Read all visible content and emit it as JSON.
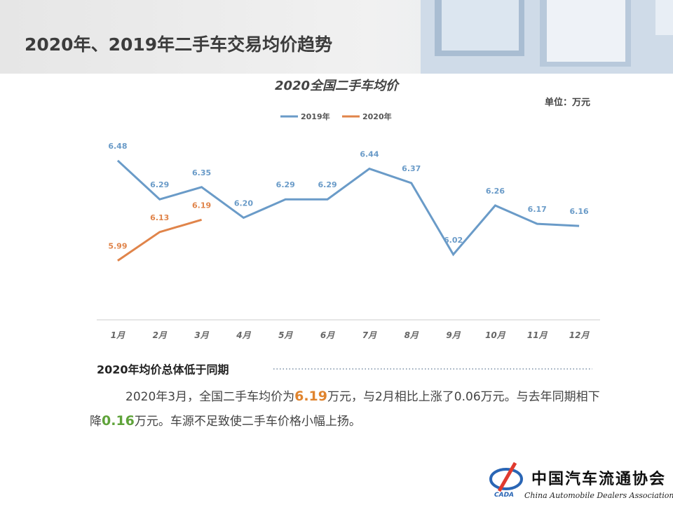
{
  "header": {
    "title": "2020年、2019年二手车交易均价趋势"
  },
  "chart_data": {
    "type": "line",
    "title": "2020全国二手车均价",
    "unit": "单位：万元",
    "categories": [
      "1月",
      "2月",
      "3月",
      "4月",
      "5月",
      "6月",
      "7月",
      "8月",
      "9月",
      "10月",
      "11月",
      "12月"
    ],
    "series": [
      {
        "name": "2019年",
        "color": "#6a9bc8",
        "values": [
          6.48,
          6.29,
          6.35,
          6.2,
          6.29,
          6.29,
          6.44,
          6.37,
          6.02,
          6.26,
          6.17,
          6.16
        ],
        "value_labels": [
          "6.48",
          "6.29",
          "6.35",
          "6.20",
          "6.29",
          "6.29",
          "6.44",
          "6.37",
          "6.02",
          "6.26",
          "6.17",
          "6.16"
        ]
      },
      {
        "name": "2020年",
        "color": "#e0844a",
        "values": [
          5.99,
          6.13,
          6.19,
          null,
          null,
          null,
          null,
          null,
          null,
          null,
          null,
          null
        ],
        "value_labels": [
          "5.99",
          "6.13",
          "6.19",
          null,
          null,
          null,
          null,
          null,
          null,
          null,
          null,
          null
        ]
      }
    ],
    "ylim": [
      5.7,
      6.6
    ],
    "grid": false,
    "legend": "top"
  },
  "summary": {
    "heading": "2020年均价总体低于同期",
    "paragraph": [
      "2020年3月，全国二手车均价为",
      "6.19",
      "万元，与2月相比上涨了0.06万元。与去年同期相下降",
      "0.16",
      "万元。车源不足致使二手车价格小幅上扬。"
    ]
  },
  "logo": {
    "mark": "CADA",
    "name": "中国汽车流通协会",
    "english": "China Automobile Dealers Association"
  }
}
